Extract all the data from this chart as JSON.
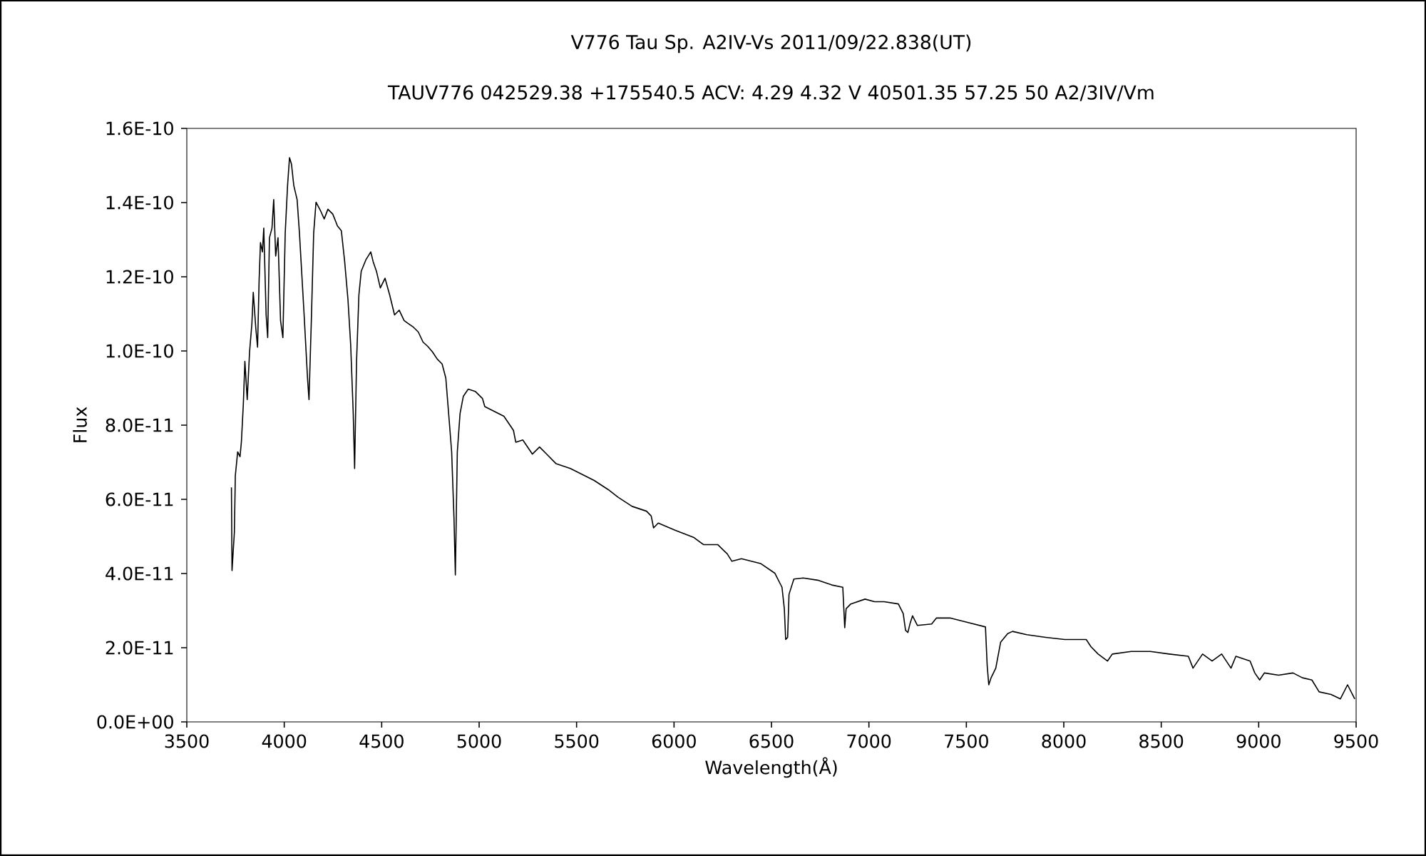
{
  "chart_data": {
    "type": "line",
    "title": "V776 Tau    Sp. A2IV-Vs    2011/09/22.838(UT)",
    "subtitle": "TAUV776 042529.38 +175540.5 ACV: 4.29 4.32 V 40501.35 57.25 50 A2/3IV/Vm",
    "xlabel": "Wavelength(Å)",
    "ylabel": "Flux",
    "series": [
      {
        "color": "#000000",
        "x": [
          3729,
          3732,
          3744,
          3749,
          3761,
          3773,
          3780,
          3790,
          3798,
          3810,
          3822,
          3834,
          3841,
          3854,
          3863,
          3871,
          3878,
          3888,
          3895,
          3907,
          3915,
          3924,
          3937,
          3946,
          3956,
          3968,
          3981,
          3993,
          4005,
          4017,
          4027,
          4037,
          4049,
          4066,
          4078,
          4102,
          4120,
          4127,
          4139,
          4151,
          4163,
          4188,
          4205,
          4224,
          4249,
          4273,
          4293,
          4310,
          4327,
          4341,
          4354,
          4361,
          4371,
          4383,
          4395,
          4420,
          4444,
          4456,
          4473,
          4493,
          4517,
          4541,
          4566,
          4590,
          4615,
          4639,
          4663,
          4688,
          4712,
          4737,
          4761,
          4785,
          4810,
          4829,
          4846,
          4859,
          4871,
          4878,
          4888,
          4902,
          4919,
          4944,
          4980,
          5017,
          5029,
          5078,
          5127,
          5176,
          5188,
          5224,
          5273,
          5310,
          5346,
          5395,
          5468,
          5541,
          5590,
          5663,
          5712,
          5785,
          5859,
          5883,
          5895,
          5919,
          6005,
          6102,
          6151,
          6224,
          6273,
          6297,
          6346,
          6444,
          6517,
          6554,
          6566,
          6573,
          6583,
          6590,
          6615,
          6663,
          6737,
          6810,
          6866,
          6876,
          6883,
          6907,
          6980,
          7029,
          7078,
          7151,
          7176,
          7188,
          7200,
          7212,
          7224,
          7249,
          7322,
          7346,
          7419,
          7517,
          7598,
          7607,
          7615,
          7627,
          7651,
          7676,
          7712,
          7737,
          7810,
          7907,
          8005,
          8115,
          8139,
          8176,
          8224,
          8249,
          8346,
          8444,
          8541,
          8639,
          8663,
          8712,
          8761,
          8810,
          8858,
          8883,
          8956,
          8980,
          9005,
          9029,
          9102,
          9176,
          9224,
          9273,
          9310,
          9371,
          9419,
          9456,
          9493
        ],
        "values": [
          6.32e-11,
          4.08e-11,
          5.1e-11,
          6.64e-11,
          7.28e-11,
          7.15e-11,
          7.54e-11,
          8.56e-11,
          9.72e-11,
          8.69e-11,
          9.97e-11,
          1.074e-10,
          1.158e-10,
          1.062e-10,
          1.01e-10,
          1.19e-10,
          1.292e-10,
          1.267e-10,
          1.331e-10,
          1.097e-10,
          1.036e-10,
          1.305e-10,
          1.331e-10,
          1.408e-10,
          1.256e-10,
          1.305e-10,
          1.082e-10,
          1.036e-10,
          1.318e-10,
          1.446e-10,
          1.521e-10,
          1.504e-10,
          1.446e-10,
          1.408e-10,
          1.318e-10,
          1.097e-10,
          9.21e-11,
          8.69e-11,
          1.082e-10,
          1.318e-10,
          1.401e-10,
          1.376e-10,
          1.356e-10,
          1.382e-10,
          1.369e-10,
          1.337e-10,
          1.324e-10,
          1.241e-10,
          1.138e-10,
          1.015e-10,
          8.31e-11,
          6.83e-11,
          9.72e-11,
          1.151e-10,
          1.215e-10,
          1.247e-10,
          1.267e-10,
          1.241e-10,
          1.215e-10,
          1.17e-10,
          1.196e-10,
          1.151e-10,
          1.097e-10,
          1.11e-10,
          1.082e-10,
          1.073e-10,
          1.064e-10,
          1.051e-10,
          1.024e-10,
          1.012e-10,
          9.97e-11,
          9.78e-11,
          9.65e-11,
          9.27e-11,
          8.15e-11,
          7.28e-11,
          5.49e-11,
          3.96e-11,
          7.28e-11,
          8.31e-11,
          8.78e-11,
          8.97e-11,
          8.91e-11,
          8.72e-11,
          8.5e-11,
          8.37e-11,
          8.24e-11,
          7.86e-11,
          7.54e-11,
          7.6e-11,
          7.22e-11,
          7.41e-11,
          7.22e-11,
          6.96e-11,
          6.83e-11,
          6.64e-11,
          6.51e-11,
          6.26e-11,
          6.06e-11,
          5.81e-11,
          5.68e-11,
          5.55e-11,
          5.23e-11,
          5.36e-11,
          5.17e-11,
          4.97e-11,
          4.78e-11,
          4.78e-11,
          4.53e-11,
          4.33e-11,
          4.4e-11,
          4.27e-11,
          4.01e-11,
          3.63e-11,
          3.05e-11,
          2.22e-11,
          2.28e-11,
          3.44e-11,
          3.85e-11,
          3.88e-11,
          3.82e-11,
          3.69e-11,
          3.63e-11,
          2.54e-11,
          3.05e-11,
          3.18e-11,
          3.31e-11,
          3.24e-11,
          3.24e-11,
          3.18e-11,
          2.92e-11,
          2.47e-11,
          2.41e-11,
          2.67e-11,
          2.86e-11,
          2.6e-11,
          2.64e-11,
          2.8e-11,
          2.8e-11,
          2.67e-11,
          2.56e-11,
          1.51e-11,
          1e-11,
          1.19e-11,
          1.45e-11,
          2.15e-11,
          2.38e-11,
          2.44e-11,
          2.35e-11,
          2.28e-11,
          2.22e-11,
          2.22e-11,
          2.03e-11,
          1.83e-11,
          1.64e-11,
          1.83e-11,
          1.9e-11,
          1.9e-11,
          1.83e-11,
          1.77e-11,
          1.45e-11,
          1.83e-11,
          1.64e-11,
          1.83e-11,
          1.45e-11,
          1.77e-11,
          1.64e-11,
          1.32e-11,
          1.13e-11,
          1.32e-11,
          1.26e-11,
          1.32e-11,
          1.19e-11,
          1.13e-11,
          8.1e-12,
          7.4e-12,
          6.2e-12,
          1e-11,
          6.2e-12
        ]
      }
    ],
    "xlim": [
      3500,
      9500
    ],
    "xticks": [
      3500,
      4000,
      4500,
      5000,
      5500,
      6000,
      6500,
      7000,
      7500,
      8000,
      8500,
      9000,
      9500
    ],
    "ylim": [
      0,
      1.6e-10
    ],
    "yticks": [
      {
        "value": 0,
        "label": "0.0E+00"
      },
      {
        "value": 2e-11,
        "label": "2.0E-11"
      },
      {
        "value": 4e-11,
        "label": "4.0E-11"
      },
      {
        "value": 6e-11,
        "label": "6.0E-11"
      },
      {
        "value": 8e-11,
        "label": "8.0E-11"
      },
      {
        "value": 1e-10,
        "label": "1.0E-10"
      },
      {
        "value": 1.2e-10,
        "label": "1.2E-10"
      },
      {
        "value": 1.4e-10,
        "label": "1.4E-10"
      },
      {
        "value": 1.6e-10,
        "label": "1.6E-10"
      }
    ],
    "grid": false,
    "marker": "none",
    "line_style": "solid"
  }
}
